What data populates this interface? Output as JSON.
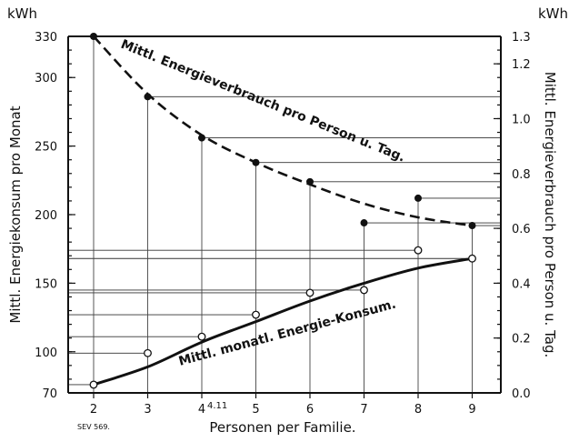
{
  "chart_data": [
    {
      "type": "line",
      "title": "",
      "xlabel": "Personen per Familie.",
      "ylabel": "Mittl. Energiekonsum pro Monat",
      "yunit": "kWh",
      "x": [
        2,
        3,
        4,
        5,
        6,
        7,
        8,
        9
      ],
      "xticks": [
        "2",
        "3",
        "4",
        "5",
        "6",
        "7",
        "8",
        "9"
      ],
      "ylim": [
        70,
        330
      ],
      "yticks": [
        70,
        100,
        150,
        200,
        250,
        300,
        330
      ],
      "series": [
        {
          "name": "Mittl. monatl. Energie-Konsum.",
          "marker": "open-circle",
          "line": "solid",
          "points": [
            {
              "x": 2,
              "y": 76
            },
            {
              "x": 3,
              "y": 99
            },
            {
              "x": 4,
              "y": 111
            },
            {
              "x": 5,
              "y": 127
            },
            {
              "x": 6,
              "y": 143
            },
            {
              "x": 7,
              "y": 145
            },
            {
              "x": 8,
              "y": 174
            },
            {
              "x": 9,
              "y": 168
            }
          ],
          "curve": [
            {
              "x": 2,
              "y": 76
            },
            {
              "x": 3,
              "y": 89
            },
            {
              "x": 4,
              "y": 107
            },
            {
              "x": 5,
              "y": 122
            },
            {
              "x": 6,
              "y": 137
            },
            {
              "x": 7,
              "y": 150
            },
            {
              "x": 8,
              "y": 161
            },
            {
              "x": 9,
              "y": 168
            }
          ]
        }
      ]
    },
    {
      "type": "line",
      "title": "",
      "ylabel": "Mittl. Energieverbrauch pro Person u. Tag.",
      "yunit": "kWh",
      "ylim": [
        0,
        1.3
      ],
      "yticks": [
        0,
        0.2,
        0.4,
        0.6,
        0.8,
        1.0,
        1.2,
        1.3
      ],
      "series": [
        {
          "name": "Mittl. Energieverbrauch pro Person u. Tag.",
          "marker": "filled-circle",
          "line": "dashed",
          "points": [
            {
              "x": 2,
              "y": 1.3
            },
            {
              "x": 3,
              "y": 1.08
            },
            {
              "x": 4,
              "y": 0.93
            },
            {
              "x": 5,
              "y": 0.84
            },
            {
              "x": 6,
              "y": 0.77
            },
            {
              "x": 7,
              "y": 0.62
            },
            {
              "x": 8,
              "y": 0.71
            },
            {
              "x": 9,
              "y": 0.61
            }
          ],
          "curve": [
            {
              "x": 2,
              "y": 1.3
            },
            {
              "x": 3,
              "y": 1.09
            },
            {
              "x": 4,
              "y": 0.94
            },
            {
              "x": 5,
              "y": 0.84
            },
            {
              "x": 6,
              "y": 0.76
            },
            {
              "x": 7,
              "y": 0.69
            },
            {
              "x": 8,
              "y": 0.64
            },
            {
              "x": 9,
              "y": 0.61
            }
          ]
        }
      ]
    }
  ],
  "annotations": {
    "tick_note": "4.11",
    "code": "SEV 569."
  },
  "grid": true
}
